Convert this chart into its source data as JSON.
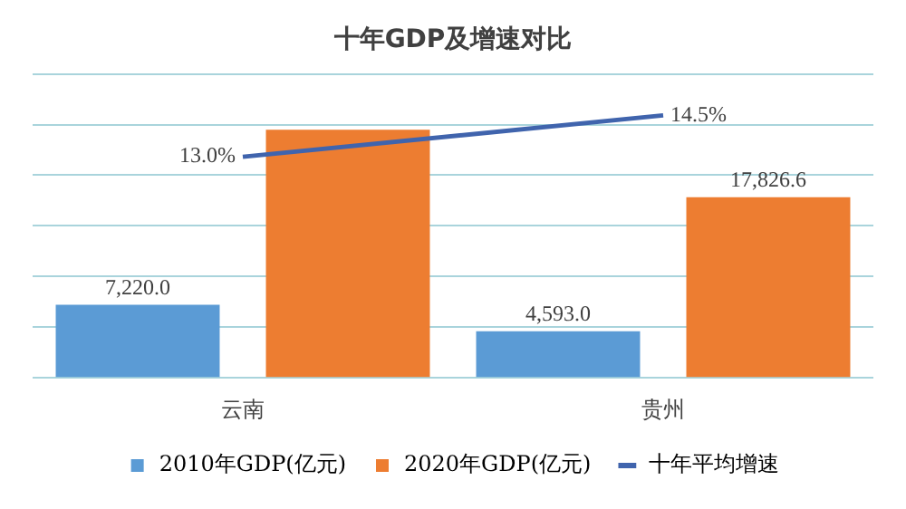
{
  "chart_data": {
    "type": "bar",
    "title": "十年GDP及增速对比",
    "categories": [
      "云南",
      "贵州"
    ],
    "series": [
      {
        "name": "2010年GDP(亿元)",
        "color": "#5b9bd5",
        "values": [
          7220.0,
          4593.0
        ],
        "value_labels": [
          "7,220.0",
          "4,593.0"
        ]
      },
      {
        "name": "2020年GDP(亿元)",
        "color": "#ed7d31",
        "values": [
          24500,
          17826.6
        ],
        "value_labels": [
          null,
          "17,826.6"
        ]
      },
      {
        "name": "十年平均增速",
        "type": "line",
        "axis": "y2",
        "color": "#4064ad",
        "values": [
          13.0,
          14.5
        ],
        "value_labels": [
          "13.0%",
          "14.5%"
        ]
      }
    ],
    "ylim": [
      0,
      30000
    ],
    "yticks": [
      {
        "value": 0,
        "label": null
      },
      {
        "value": 5000,
        "label": null
      },
      {
        "value": 10000,
        "label": null
      },
      {
        "value": 15000,
        "label": null
      },
      {
        "value": 20000,
        "label": null
      },
      {
        "value": 25000,
        "label": null
      },
      {
        "value": 30000,
        "label": null
      }
    ],
    "y2lim": [
      5,
      16
    ],
    "tick_labels": "x",
    "grid": "y",
    "legend": "bottom",
    "marker": "none",
    "line_style": "solid"
  }
}
